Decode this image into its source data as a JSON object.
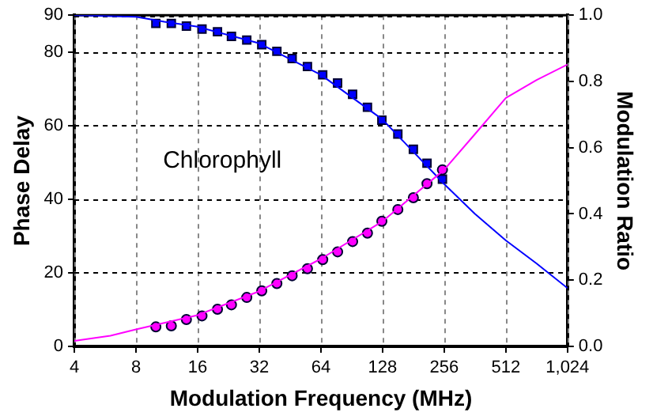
{
  "chart_data": {
    "type": "scatter",
    "xlabel": "Modulation Frequency (MHz)",
    "ylabel": "Phase Delay",
    "y2label": "Modulation Ratio",
    "log": "x",
    "xlim": [
      4,
      1024
    ],
    "xticks": [
      4,
      8,
      16,
      32,
      64,
      128,
      256,
      512,
      {
        "value": 1024,
        "label": "1,024"
      }
    ],
    "ylim": [
      0,
      90
    ],
    "yticks": [
      0,
      20,
      40,
      60,
      80,
      90
    ],
    "y2lim": [
      0,
      1
    ],
    "y2ticks": [
      {
        "value": 0,
        "label": "0.0"
      },
      {
        "value": 0.2,
        "label": "0.2"
      },
      {
        "value": 0.4,
        "label": "0.4"
      },
      {
        "value": 0.6,
        "label": "0.6"
      },
      {
        "value": 0.8,
        "label": "0.8"
      },
      {
        "value": 1,
        "label": "1.0"
      }
    ],
    "grid": true,
    "legend": false,
    "annotations": [
      "Chlorophyll"
    ],
    "series": [
      {
        "type": "line",
        "color": "#ff00ff",
        "marker": "none",
        "x": [
          4,
          6,
          8,
          16,
          32,
          64,
          128,
          256,
          362,
          512,
          724,
          1024
        ],
        "values": [
          1.5,
          2.9,
          4.6,
          8.5,
          15,
          23.8,
          34,
          48,
          57.7,
          67.5,
          72.4,
          76.6
        ]
      },
      {
        "type": "line",
        "color": "#0000ff",
        "marker": "none",
        "axis": "y2",
        "x": [
          4,
          8,
          11,
          16,
          32,
          64,
          128,
          256,
          362,
          512,
          724,
          1024
        ],
        "values": [
          1.0,
          0.995,
          0.98,
          0.965,
          0.915,
          0.82,
          0.685,
          0.49,
          0.4,
          0.32,
          0.25,
          0.176
        ]
      },
      {
        "color": "#ff00ff",
        "marker": "circle",
        "x": [
          10,
          11.9,
          14.1,
          16.8,
          20,
          23.4,
          27.8,
          32.9,
          39,
          46.3,
          55,
          65.3,
          77.2,
          91.4,
          108,
          127,
          152,
          181,
          211,
          251
        ],
        "values": [
          5.3,
          5.6,
          7.3,
          8.3,
          10.1,
          11.3,
          13.3,
          15.1,
          17.1,
          19.2,
          21.1,
          23.6,
          25.7,
          28.5,
          30.8,
          34.0,
          37.2,
          40.4,
          44.2,
          48.0
        ]
      },
      {
        "color": "#0000ff",
        "marker": "square",
        "axis": "y2",
        "x": [
          10,
          11.9,
          14.1,
          16.8,
          20,
          23.4,
          27.8,
          32.9,
          39,
          46.3,
          55,
          65.3,
          77.2,
          91.4,
          108,
          127,
          152,
          181,
          211,
          251
        ],
        "values": [
          0.975,
          0.975,
          0.967,
          0.958,
          0.95,
          0.936,
          0.925,
          0.911,
          0.891,
          0.869,
          0.845,
          0.82,
          0.795,
          0.761,
          0.722,
          0.683,
          0.641,
          0.595,
          0.553,
          0.505
        ]
      }
    ]
  }
}
